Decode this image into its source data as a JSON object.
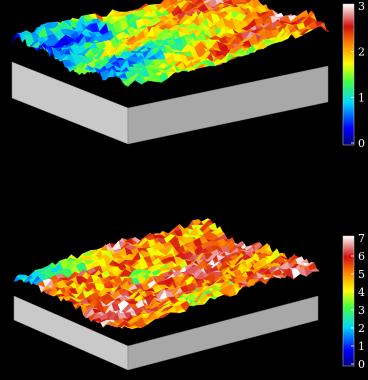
{
  "chart_data": [
    {
      "type": "heatmap",
      "title": "",
      "colorbar": {
        "min": 0,
        "max": 3,
        "ticks": [
          0,
          1,
          2,
          3
        ],
        "colormap": "jet-to-white"
      },
      "surface": "3d-wireframe",
      "dominant_range": [
        1.5,
        3
      ]
    },
    {
      "type": "heatmap",
      "title": "",
      "colorbar": {
        "min": 0,
        "max": 7,
        "ticks": [
          0,
          1,
          2,
          3,
          4,
          5,
          6,
          7
        ],
        "colormap": "jet-to-white"
      },
      "surface": "3d-wireframe",
      "dominant_range": [
        5,
        7
      ]
    }
  ]
}
